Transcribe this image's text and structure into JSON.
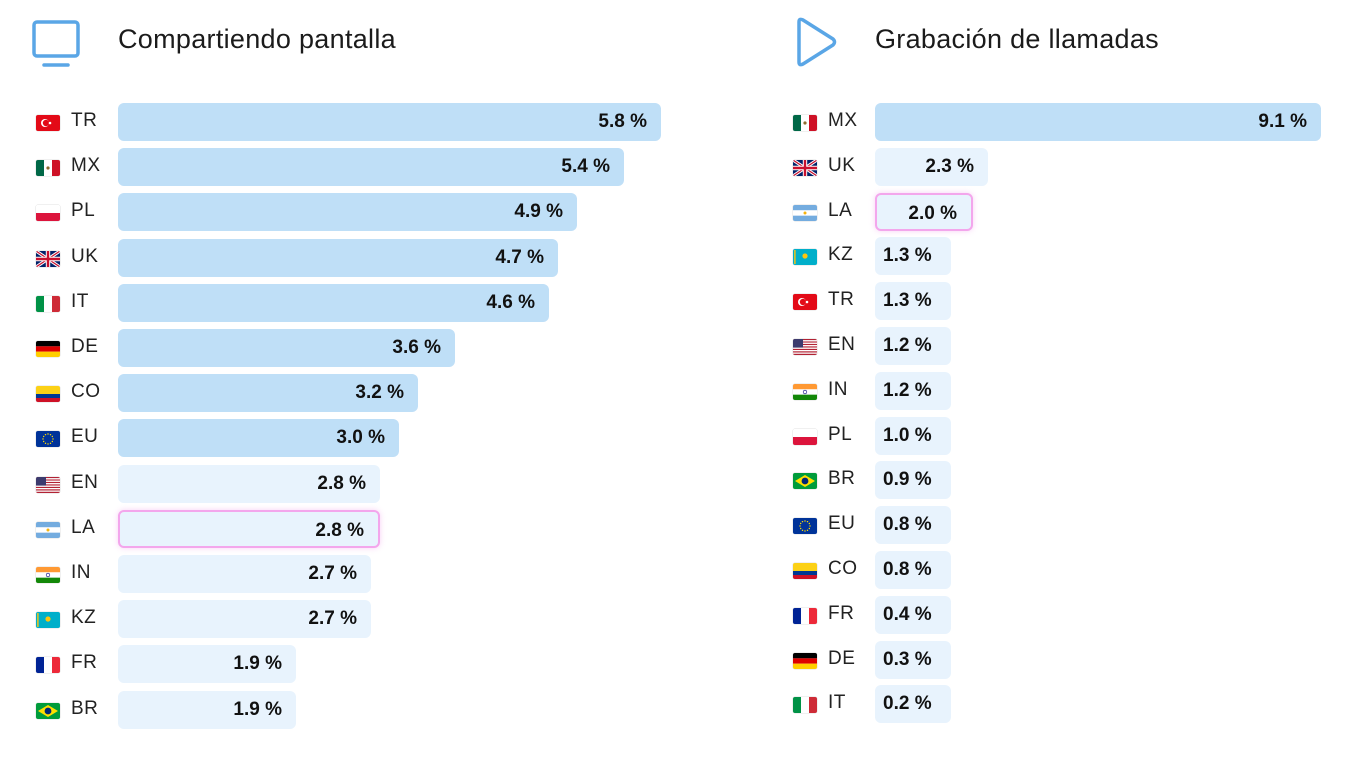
{
  "chart_data": [
    {
      "type": "bar",
      "orientation": "horizontal",
      "title": "Compartiendo pantalla",
      "icon": "monitor-icon",
      "unit": "%",
      "xlim": [
        0,
        5.8
      ],
      "categories": [
        "TR",
        "MX",
        "PL",
        "UK",
        "IT",
        "DE",
        "CO",
        "EU",
        "EN",
        "LA",
        "IN",
        "KZ",
        "FR",
        "BR"
      ],
      "labels": [
        "5.8 %",
        "5.4 %",
        "4.9 %",
        "4.7 %",
        "4.6 %",
        "3.6 %",
        "3.2 %",
        "3.0 %",
        "2.8 %",
        "2.8 %",
        "2.7 %",
        "2.7 %",
        "1.9 %",
        "1.9 %"
      ],
      "values": [
        5.8,
        5.4,
        4.9,
        4.7,
        4.6,
        3.6,
        3.2,
        3.0,
        2.8,
        2.8,
        2.7,
        2.7,
        1.9,
        1.9
      ],
      "highlighted": "LA"
    },
    {
      "type": "bar",
      "orientation": "horizontal",
      "title": "Grabación de llamadas",
      "icon": "play-icon",
      "unit": "%",
      "xlim": [
        0,
        9.1
      ],
      "categories": [
        "MX",
        "UK",
        "LA",
        "KZ",
        "TR",
        "EN",
        "IN",
        "PL",
        "BR",
        "EU",
        "CO",
        "FR",
        "DE",
        "IT"
      ],
      "labels": [
        "9.1 %",
        "2.3 %",
        "2.0 %",
        "1.3 %",
        "1.3 %",
        "1.2 %",
        "1.2 %",
        "1.0 %",
        "0.9 %",
        "0.8 %",
        "0.8 %",
        "0.4 %",
        "0.3 %",
        "0.2 %"
      ],
      "values": [
        9.1,
        2.3,
        2.0,
        1.3,
        1.3,
        1.2,
        1.2,
        1.0,
        0.9,
        0.8,
        0.8,
        0.4,
        0.3,
        0.2
      ],
      "highlighted": "LA"
    }
  ],
  "colors": {
    "bar_top": "#bfdff7",
    "bar_other": "#e8f3fd",
    "highlight_border": "#f3a6ec",
    "icon": "#5aa6e6"
  }
}
